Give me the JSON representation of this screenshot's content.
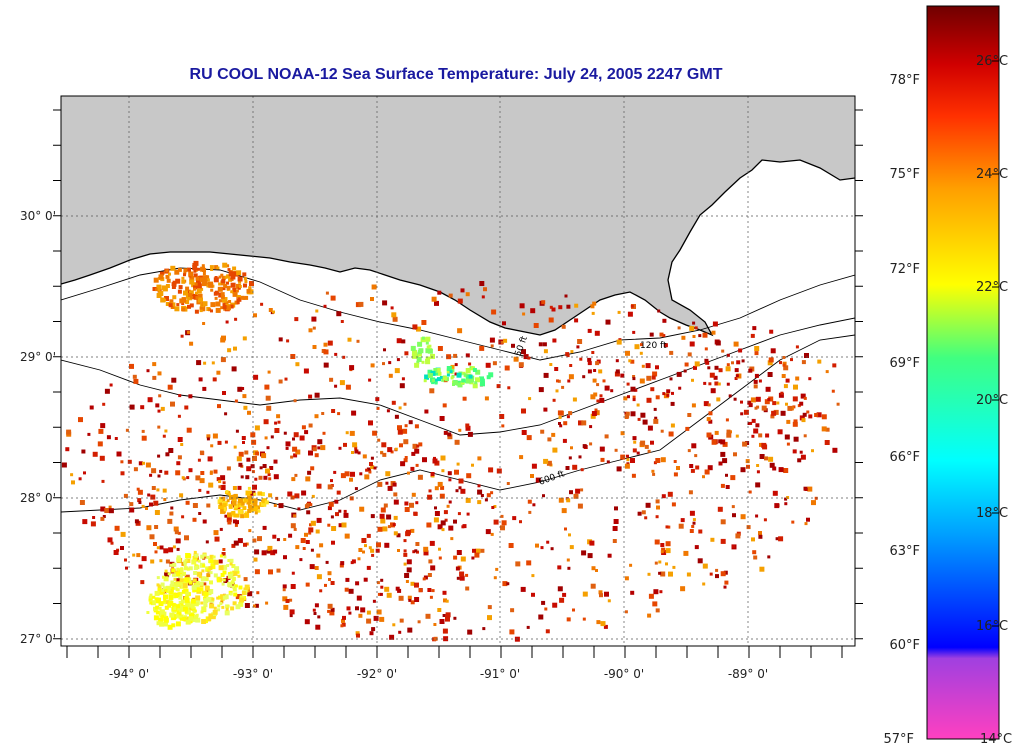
{
  "title": "RU COOL  NOAA-12  Sea Surface Temperature:  July 24, 2005 2247 GMT",
  "map": {
    "lon_range": [
      -94.6,
      -88.25
    ],
    "lat_range": [
      26.95,
      30.85
    ],
    "lat_labels": [
      {
        "value": 30,
        "text": "30° 0'"
      },
      {
        "value": 29,
        "text": "29° 0'"
      },
      {
        "value": 28,
        "text": "28° 0'"
      },
      {
        "value": 27,
        "text": "27° 0'"
      }
    ],
    "lon_labels": [
      {
        "value": -94,
        "text": "-94° 0'"
      },
      {
        "value": -93,
        "text": "-93° 0'"
      },
      {
        "value": -92,
        "text": "-92° 0'"
      },
      {
        "value": -91,
        "text": "-91° 0'"
      },
      {
        "value": -90,
        "text": "-90° 0'"
      },
      {
        "value": -89,
        "text": "-89° 0'"
      }
    ],
    "land_color": "#c8c8c8",
    "contour_labels": [
      "50 ft",
      "120 ft",
      "600 ft"
    ]
  },
  "colorbar": {
    "min_c": 14,
    "max_c": 27.5,
    "celsius_labels": [
      "26°C",
      "24°C",
      "22°C",
      "20°C",
      "18°C",
      "16°C",
      "14°C"
    ],
    "fahrenheit_labels": [
      "78°F",
      "75°F",
      "72°F",
      "69°F",
      "66°F",
      "63°F",
      "60°F",
      "57°F"
    ],
    "colors": [
      "#ff40c0",
      "#a040e0",
      "#0000ff",
      "#00a0ff",
      "#00ffff",
      "#40ff80",
      "#ffff00",
      "#ffa000",
      "#ff4000",
      "#c00000",
      "#700000"
    ]
  }
}
